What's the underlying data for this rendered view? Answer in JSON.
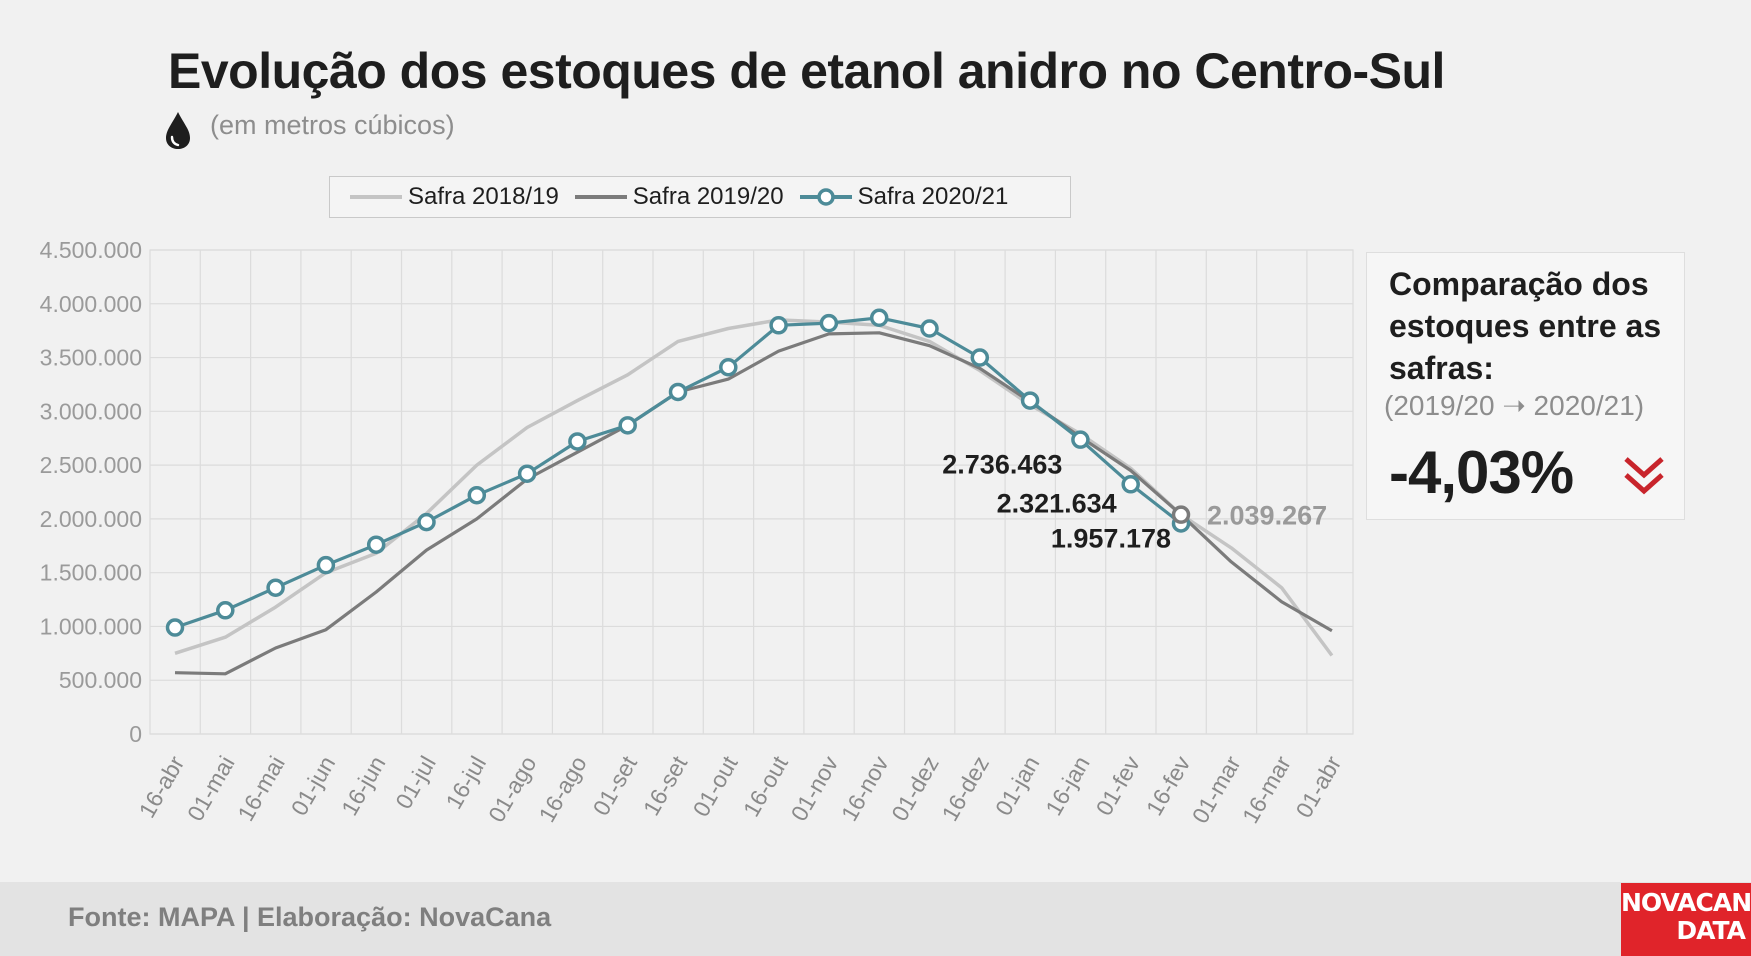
{
  "title": "Evolução dos estoques de etanol anidro no Centro-Sul",
  "subtitle": "(em metros cúbicos)",
  "colors": {
    "safra_2018_19": "#c4c4c4",
    "safra_2019_20": "#7b7b7b",
    "safra_2020_21": "#4d8b98",
    "accent_red": "#c8242b"
  },
  "comparison": {
    "title": "Comparação dos estoques entre as safras:",
    "period": "(2019/20 ➝ 2020/21)",
    "value": "-4,03%",
    "icon": "double-chevron-down-icon"
  },
  "footer": {
    "source": "Fonte: MAPA  | Elaboração: NovaCana"
  },
  "logo": {
    "line1": "NOVACANA",
    "line2": "DATA"
  },
  "chart_data": {
    "type": "line",
    "categories": [
      "16-abr",
      "01-mai",
      "16-mai",
      "01-jun",
      "16-jun",
      "01-jul",
      "16-jul",
      "01-ago",
      "16-ago",
      "01-set",
      "16-set",
      "01-out",
      "16-out",
      "01-nov",
      "16-nov",
      "01-dez",
      "16-dez",
      "01-jan",
      "16-jan",
      "01-fev",
      "16-fev",
      "01-mar",
      "16-mar",
      "01-abr"
    ],
    "y_ticks": [
      "0",
      "500.000",
      "1.000.000",
      "1.500.000",
      "2.000.000",
      "2.500.000",
      "3.000.000",
      "3.500.000",
      "4.000.000",
      "4.500.000"
    ],
    "ylim": [
      0,
      4500000
    ],
    "grid": true,
    "legend_position": "top",
    "series": [
      {
        "name": "Safra 2018/19",
        "values": [
          750000,
          900000,
          1180000,
          1500000,
          1680000,
          2050000,
          2500000,
          2850000,
          3100000,
          3340000,
          3650000,
          3770000,
          3850000,
          3830000,
          3800000,
          3650000,
          3380000,
          3060000,
          2790000,
          2470000,
          2040000,
          1730000,
          1360000,
          730000
        ]
      },
      {
        "name": "Safra 2019/20",
        "values": [
          570000,
          560000,
          800000,
          970000,
          1320000,
          1710000,
          2000000,
          2370000,
          2620000,
          2870000,
          3180000,
          3300000,
          3560000,
          3720000,
          3730000,
          3610000,
          3400000,
          3090000,
          2760000,
          2450000,
          2039267,
          1600000,
          1230000,
          960000
        ]
      },
      {
        "name": "Safra 2020/21",
        "values": [
          990000,
          1150000,
          1360000,
          1570000,
          1760000,
          1970000,
          2220000,
          2420000,
          2720000,
          2870000,
          3180000,
          3410000,
          3800000,
          3820000,
          3870000,
          3770000,
          3500000,
          3100000,
          2736463,
          2321634,
          1957178,
          null,
          null,
          null
        ]
      }
    ],
    "annotations": [
      {
        "text": "2.736.463",
        "series": "Safra 2020/21",
        "category": "16-jan"
      },
      {
        "text": "2.321.634",
        "series": "Safra 2020/21",
        "category": "01-fev"
      },
      {
        "text": "1.957.178",
        "series": "Safra 2020/21",
        "category": "16-fev"
      },
      {
        "text": "2.039.267",
        "series": "Safra 2019/20",
        "category": "16-fev"
      }
    ]
  }
}
